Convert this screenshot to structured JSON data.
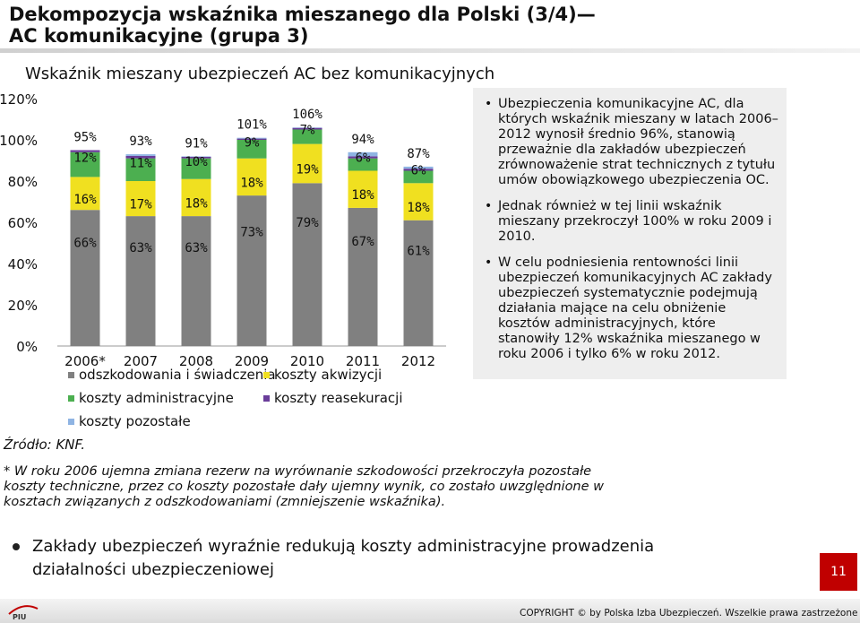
{
  "slide": {
    "title_line1": "Dekompozycja wskaźnika mieszanego dla Polski (3/4)—",
    "title_line2": "AC komunikacyjne (grupa 3)",
    "chart_title": "Wskaźnik mieszany ubezpieczeń AC bez komunikacyjnych",
    "source": "Źródło: KNF.",
    "footnote": "* W roku 2006 ujemna zmiana rezerw na wyrównanie szkodowości przekroczyła pozostałe koszty techniczne, przez co koszty pozostałe dały ujemny wynik, co zostało uwzględnione w kosztach związanych z odszkodowaniami (zmniejszenie wskaźnika).",
    "info_bullets": [
      "Ubezpieczenia komunikacyjne AC, dla których wskaźnik mieszany w latach 2006–2012 wynosił średnio 96%, stanowią przeważnie dla zakładów ubezpieczeń zrównoważenie strat technicznych z tytułu umów obowiązkowego ubezpieczenia OC.",
      "Jednak również w tej linii wskaźnik mieszany przekroczył 100% w roku 2009 i 2010.",
      "W celu podniesienia rentowności linii ubezpieczeń komunikacyjnych AC zakłady ubezpieczeń systematycznie podejmują działania mające na celu obniżenie kosztów administracyjnych, które stanowiły 12% wskaźnika mieszanego w roku 2006 i tylko 6% w roku 2012."
    ],
    "bottom_text": "Zakłady ubezpieczeń wyraźnie redukują koszty administracyjne prowadzenia działalności ubezpieczeniowej",
    "page_number": "11",
    "copyright": "COPYRIGHT © by Polska Izba Ubezpieczeń. Wszelkie prawa zastrzeżone",
    "logo_text": "PIU"
  },
  "chart_data": {
    "type": "bar",
    "stacked": true,
    "categories": [
      "2006*",
      "2007",
      "2008",
      "2009",
      "2010",
      "2011",
      "2012"
    ],
    "ylim": [
      0,
      120
    ],
    "yticks": [
      "0%",
      "20%",
      "40%",
      "60%",
      "80%",
      "100%",
      "120%"
    ],
    "grid": false,
    "legend_position": "bottom",
    "series": [
      {
        "name": "odszkodowania i świadczenia",
        "color": "#808080",
        "values": [
          66,
          63,
          63,
          73,
          79,
          67,
          61
        ],
        "labels": [
          "66%",
          "63%",
          "63%",
          "73%",
          "79%",
          "67%",
          "61%"
        ]
      },
      {
        "name": "koszty akwizycji",
        "color": "#f0e020",
        "values": [
          16,
          17,
          18,
          18,
          19,
          18,
          18
        ],
        "labels": [
          "16%",
          "17%",
          "18%",
          "18%",
          "19%",
          "18%",
          "18%"
        ]
      },
      {
        "name": "koszty administracyjne",
        "color": "#4caf50",
        "values": [
          12,
          11,
          10,
          9,
          7,
          6,
          6
        ],
        "labels": [
          "12%",
          "11%",
          "10%",
          "9%",
          "7%",
          "6%",
          "6%"
        ]
      },
      {
        "name": "koszty reasekuracji",
        "color": "#6a3d9a",
        "values": [
          1,
          1.2,
          0.8,
          0.6,
          0.8,
          1,
          1
        ],
        "labels": []
      },
      {
        "name": "koszty pozostałe",
        "color": "#8fb4e3",
        "values": [
          0,
          0.8,
          0.2,
          0.4,
          0.2,
          2,
          1
        ],
        "labels": []
      }
    ],
    "totals": [
      "95%",
      "93%",
      "91%",
      "101%",
      "106%",
      "94%",
      "87%"
    ]
  }
}
